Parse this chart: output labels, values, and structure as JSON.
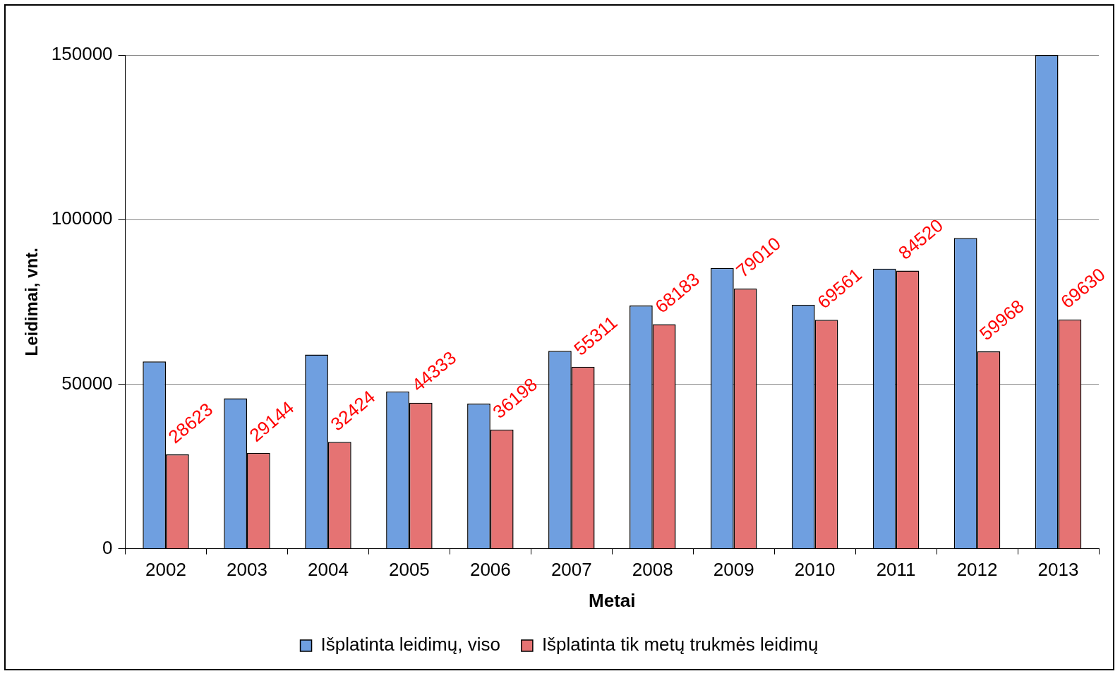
{
  "chart_data": {
    "type": "bar",
    "xlabel": "Metai",
    "ylabel": "Leidimai, vnt.",
    "categories": [
      "2002",
      "2003",
      "2004",
      "2005",
      "2006",
      "2007",
      "2008",
      "2009",
      "2010",
      "2011",
      "2012",
      "2013"
    ],
    "series": [
      {
        "name": "Išplatinta leidimų, viso",
        "color": "#6f9fe0",
        "values": [
          56900,
          45700,
          59000,
          47800,
          44100,
          60100,
          73900,
          85300,
          74100,
          85100,
          94400,
          150000
        ]
      },
      {
        "name": "Išplatinta tik metų trukmės leidimų",
        "color": "#e57373",
        "values": [
          28623,
          29144,
          32424,
          44333,
          36198,
          55311,
          68183,
          79010,
          69561,
          84520,
          59968,
          69630
        ],
        "value_labels": [
          "28623",
          "29144",
          "32424",
          "44333",
          "36198",
          "55311",
          "68183",
          "79010",
          "69561",
          "84520",
          "59968",
          "69630"
        ]
      }
    ],
    "ylim": [
      0,
      150000
    ],
    "yticks": [
      0,
      50000,
      100000,
      150000
    ],
    "grid": "y",
    "legend": "bottom"
  }
}
